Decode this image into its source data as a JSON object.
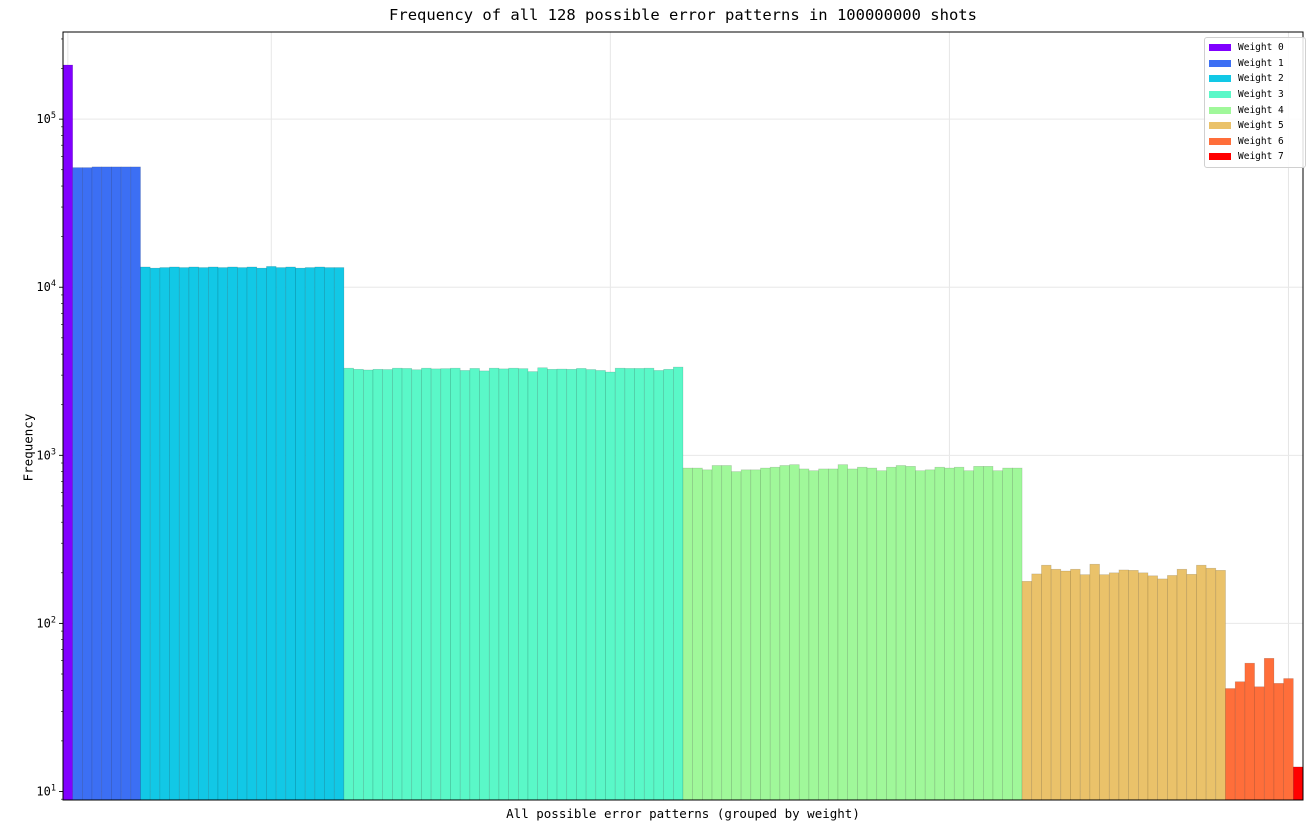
{
  "chart_data": {
    "type": "bar",
    "title": "Frequency of all 128 possible error patterns in 100000000 shots",
    "xlabel": "All possible error patterns (grouped by weight)",
    "ylabel": "Frequency",
    "yscale": "log",
    "ylim": [
      8.9,
      330000
    ],
    "yticks": [
      {
        "value": 10,
        "label": "10¹"
      },
      {
        "value": 100,
        "label": "10²"
      },
      {
        "value": 1000,
        "label": "10³"
      },
      {
        "value": 10000,
        "label": "10⁴"
      },
      {
        "value": 100000,
        "label": "10⁵"
      }
    ],
    "grid": true,
    "legend_position": "upper right",
    "series": [
      {
        "name": "Weight 0",
        "color": "#8000ff",
        "values": [
          210000
        ]
      },
      {
        "name": "Weight 1",
        "color": "#3c6ff4",
        "values": [
          51500,
          51500,
          52000,
          52000,
          52000,
          52000,
          52000
        ]
      },
      {
        "name": "Weight 2",
        "color": "#12c8e6",
        "values": [
          13200,
          13000,
          13100,
          13200,
          13100,
          13200,
          13100,
          13200,
          13100,
          13200,
          13100,
          13200,
          13000,
          13300,
          13100,
          13200,
          13000,
          13100,
          13200,
          13100,
          13100
        ]
      },
      {
        "name": "Weight 3",
        "color": "#5af8c8",
        "values": [
          3300,
          3250,
          3220,
          3250,
          3240,
          3300,
          3290,
          3230,
          3300,
          3270,
          3280,
          3300,
          3200,
          3290,
          3180,
          3300,
          3270,
          3300,
          3280,
          3150,
          3320,
          3250,
          3260,
          3250,
          3290,
          3240,
          3200,
          3130,
          3300,
          3290,
          3290,
          3300,
          3200,
          3250,
          3350
        ]
      },
      {
        "name": "Weight 4",
        "color": "#a0f89a",
        "values": [
          840,
          840,
          820,
          870,
          870,
          800,
          820,
          820,
          840,
          850,
          870,
          880,
          830,
          810,
          830,
          830,
          880,
          830,
          850,
          840,
          810,
          850,
          870,
          860,
          810,
          820,
          850,
          840,
          850,
          810,
          860,
          860,
          810,
          840,
          840
        ]
      },
      {
        "name": "Weight 5",
        "color": "#eac26a",
        "values": [
          178,
          197,
          222,
          210,
          205,
          210,
          195,
          225,
          195,
          200,
          208,
          207,
          200,
          192,
          184,
          193,
          210,
          196,
          222,
          213,
          207
        ]
      },
      {
        "name": "Weight 6",
        "color": "#ff6e3a",
        "values": [
          41,
          45,
          58,
          42,
          62,
          44,
          47
        ]
      },
      {
        "name": "Weight 7",
        "color": "#ff0000",
        "values": [
          14
        ]
      }
    ]
  }
}
